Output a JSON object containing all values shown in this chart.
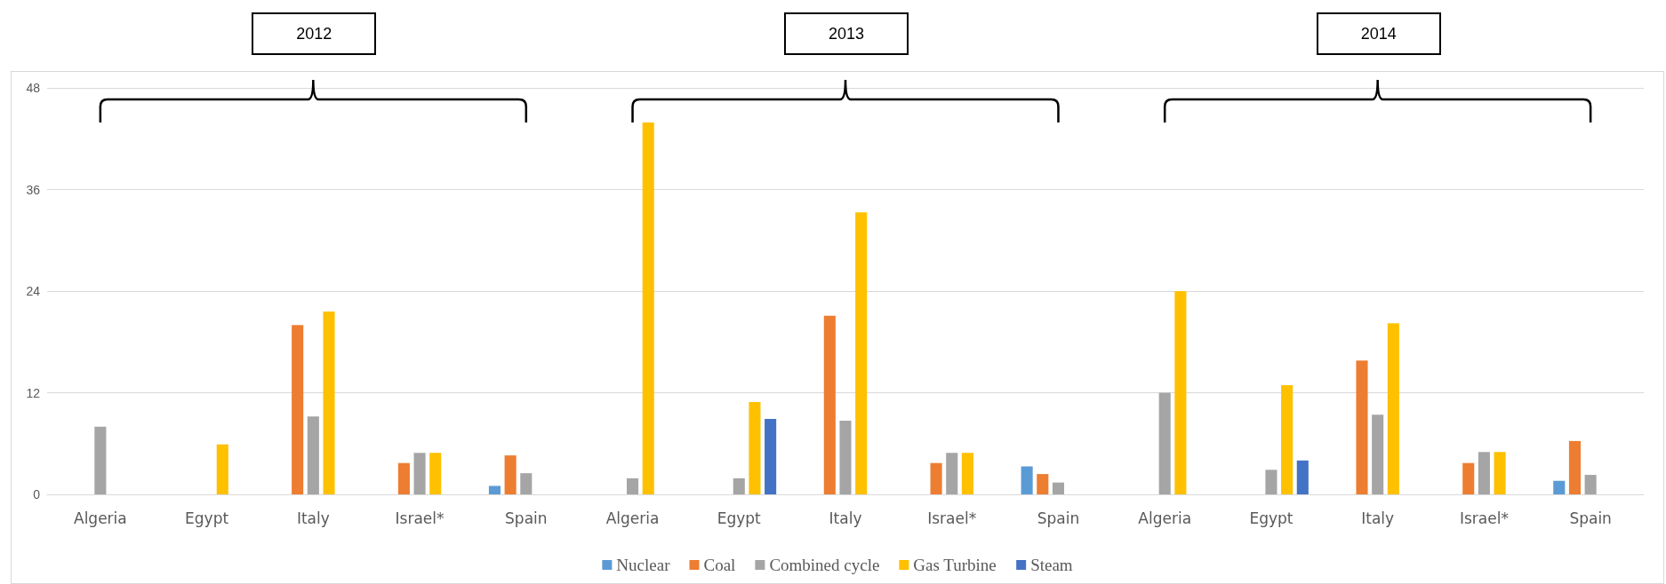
{
  "chart_data": {
    "type": "bar",
    "annotations": [
      "2012",
      "2013",
      "2014"
    ],
    "categories": [
      "Algeria",
      "Egypt",
      "Italy",
      "Israel*",
      "Spain",
      "Algeria",
      "Egypt",
      "Italy",
      "Israel*",
      "Spain",
      "Algeria",
      "Egypt",
      "Italy",
      "Israel*",
      "Spain"
    ],
    "series": [
      {
        "name": "Nuclear",
        "color": "#5b9bd5",
        "values": [
          null,
          null,
          null,
          null,
          1.0,
          null,
          null,
          null,
          null,
          3.3,
          null,
          null,
          null,
          null,
          1.6
        ]
      },
      {
        "name": "Coal",
        "color": "#ed7d31",
        "values": [
          null,
          null,
          20,
          3.7,
          4.6,
          null,
          null,
          21.1,
          3.7,
          2.4,
          null,
          null,
          15.8,
          3.7,
          6.3
        ]
      },
      {
        "name": "Combined cycle",
        "color": "#a5a5a5",
        "values": [
          8,
          null,
          9.2,
          4.9,
          2.5,
          1.9,
          1.9,
          8.7,
          4.9,
          1.4,
          12,
          2.9,
          9.4,
          5,
          2.3
        ]
      },
      {
        "name": "Gas Turbine",
        "color": "#ffc000",
        "values": [
          null,
          5.9,
          21.6,
          4.9,
          null,
          43.9,
          10.9,
          33.3,
          4.9,
          null,
          24,
          12.9,
          20.2,
          5,
          null
        ]
      },
      {
        "name": "Steam",
        "color": "#4472c4",
        "values": [
          null,
          null,
          null,
          null,
          null,
          null,
          8.9,
          null,
          null,
          null,
          null,
          4,
          null,
          null,
          null
        ]
      }
    ],
    "ylim": [
      0,
      48
    ],
    "yticks": [
      0,
      12,
      24,
      36,
      48
    ],
    "grid": "y",
    "legend": "bottom"
  }
}
